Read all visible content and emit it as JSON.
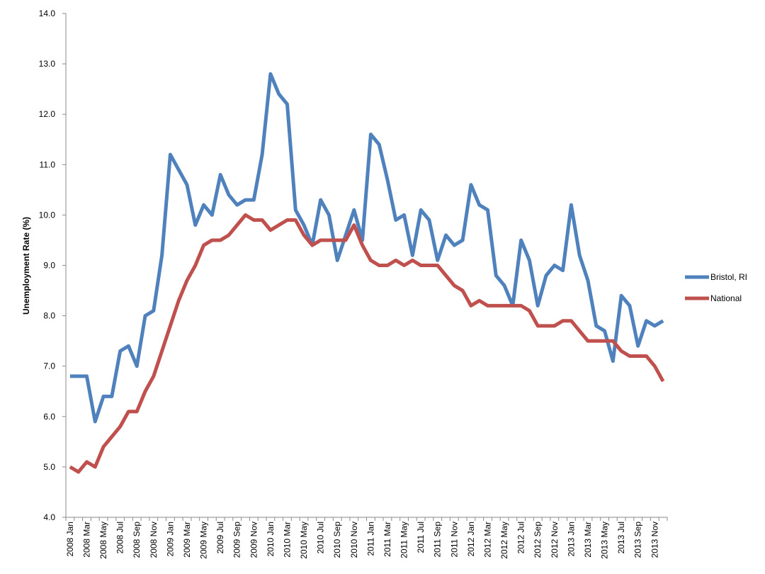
{
  "chart_data": {
    "type": "line",
    "title": "",
    "xlabel": "",
    "ylabel": "Unemployment Rate (%)",
    "ylim": [
      4.0,
      14.0
    ],
    "yticks": [
      "4.0",
      "5.0",
      "6.0",
      "7.0",
      "8.0",
      "9.0",
      "10.0",
      "11.0",
      "12.0",
      "13.0",
      "14.0"
    ],
    "grid": false,
    "legend_position": "right",
    "tick_labels": [
      "2008 Jan",
      "2008 Mar",
      "2008 May",
      "2008 Jul",
      "2008 Sep",
      "2008 Nov",
      "2009 Jan",
      "2009 Mar",
      "2009 May",
      "2009 Jul",
      "2009 Sep",
      "2009 Nov",
      "2010 Jan",
      "2010 Mar",
      "2010 May",
      "2010 Jul",
      "2010 Sep",
      "2010 Nov",
      "2011 Jan",
      "2011 Mar",
      "2011 May",
      "2011 Jul",
      "2011 Sep",
      "2011 Nov",
      "2012 Jan",
      "2012 Mar",
      "2012 May",
      "2012 Jul",
      "2012 Sep",
      "2012 Nov",
      "2013 Jan",
      "2013 Mar",
      "2013 May",
      "2013 Jul",
      "2013 Sep",
      "2013 Nov"
    ],
    "num_points": 72,
    "series": [
      {
        "name": "Bristol, RI",
        "color": "#4F81BD",
        "values": [
          6.8,
          6.8,
          6.8,
          5.9,
          6.4,
          6.4,
          7.3,
          7.4,
          7.0,
          8.0,
          8.1,
          9.2,
          11.2,
          10.9,
          10.6,
          9.8,
          10.2,
          10.0,
          10.8,
          10.4,
          10.2,
          10.3,
          10.3,
          11.2,
          12.8,
          12.4,
          12.2,
          10.1,
          9.8,
          9.4,
          10.3,
          10.0,
          9.1,
          9.6,
          10.1,
          9.5,
          11.6,
          11.4,
          10.7,
          9.9,
          10.0,
          9.2,
          10.1,
          9.9,
          9.1,
          9.6,
          9.4,
          9.5,
          10.6,
          10.2,
          10.1,
          8.8,
          8.6,
          8.2,
          9.5,
          9.1,
          8.2,
          8.8,
          9.0,
          8.9,
          10.2,
          9.2,
          8.7,
          7.8,
          7.7,
          7.1,
          8.4,
          8.2,
          7.4,
          7.9,
          7.8,
          7.9
        ]
      },
      {
        "name": "National",
        "color": "#C0504D",
        "values": [
          5.0,
          4.9,
          5.1,
          5.0,
          5.4,
          5.6,
          5.8,
          6.1,
          6.1,
          6.5,
          6.8,
          7.3,
          7.8,
          8.3,
          8.7,
          9.0,
          9.4,
          9.5,
          9.5,
          9.6,
          9.8,
          10.0,
          9.9,
          9.9,
          9.7,
          9.8,
          9.9,
          9.9,
          9.6,
          9.4,
          9.5,
          9.5,
          9.5,
          9.5,
          9.8,
          9.4,
          9.1,
          9.0,
          9.0,
          9.1,
          9.0,
          9.1,
          9.0,
          9.0,
          9.0,
          8.8,
          8.6,
          8.5,
          8.2,
          8.3,
          8.2,
          8.2,
          8.2,
          8.2,
          8.2,
          8.1,
          7.8,
          7.8,
          7.8,
          7.9,
          7.9,
          7.7,
          7.5,
          7.5,
          7.5,
          7.5,
          7.3,
          7.2,
          7.2,
          7.2,
          7.0,
          6.7
        ]
      }
    ]
  }
}
